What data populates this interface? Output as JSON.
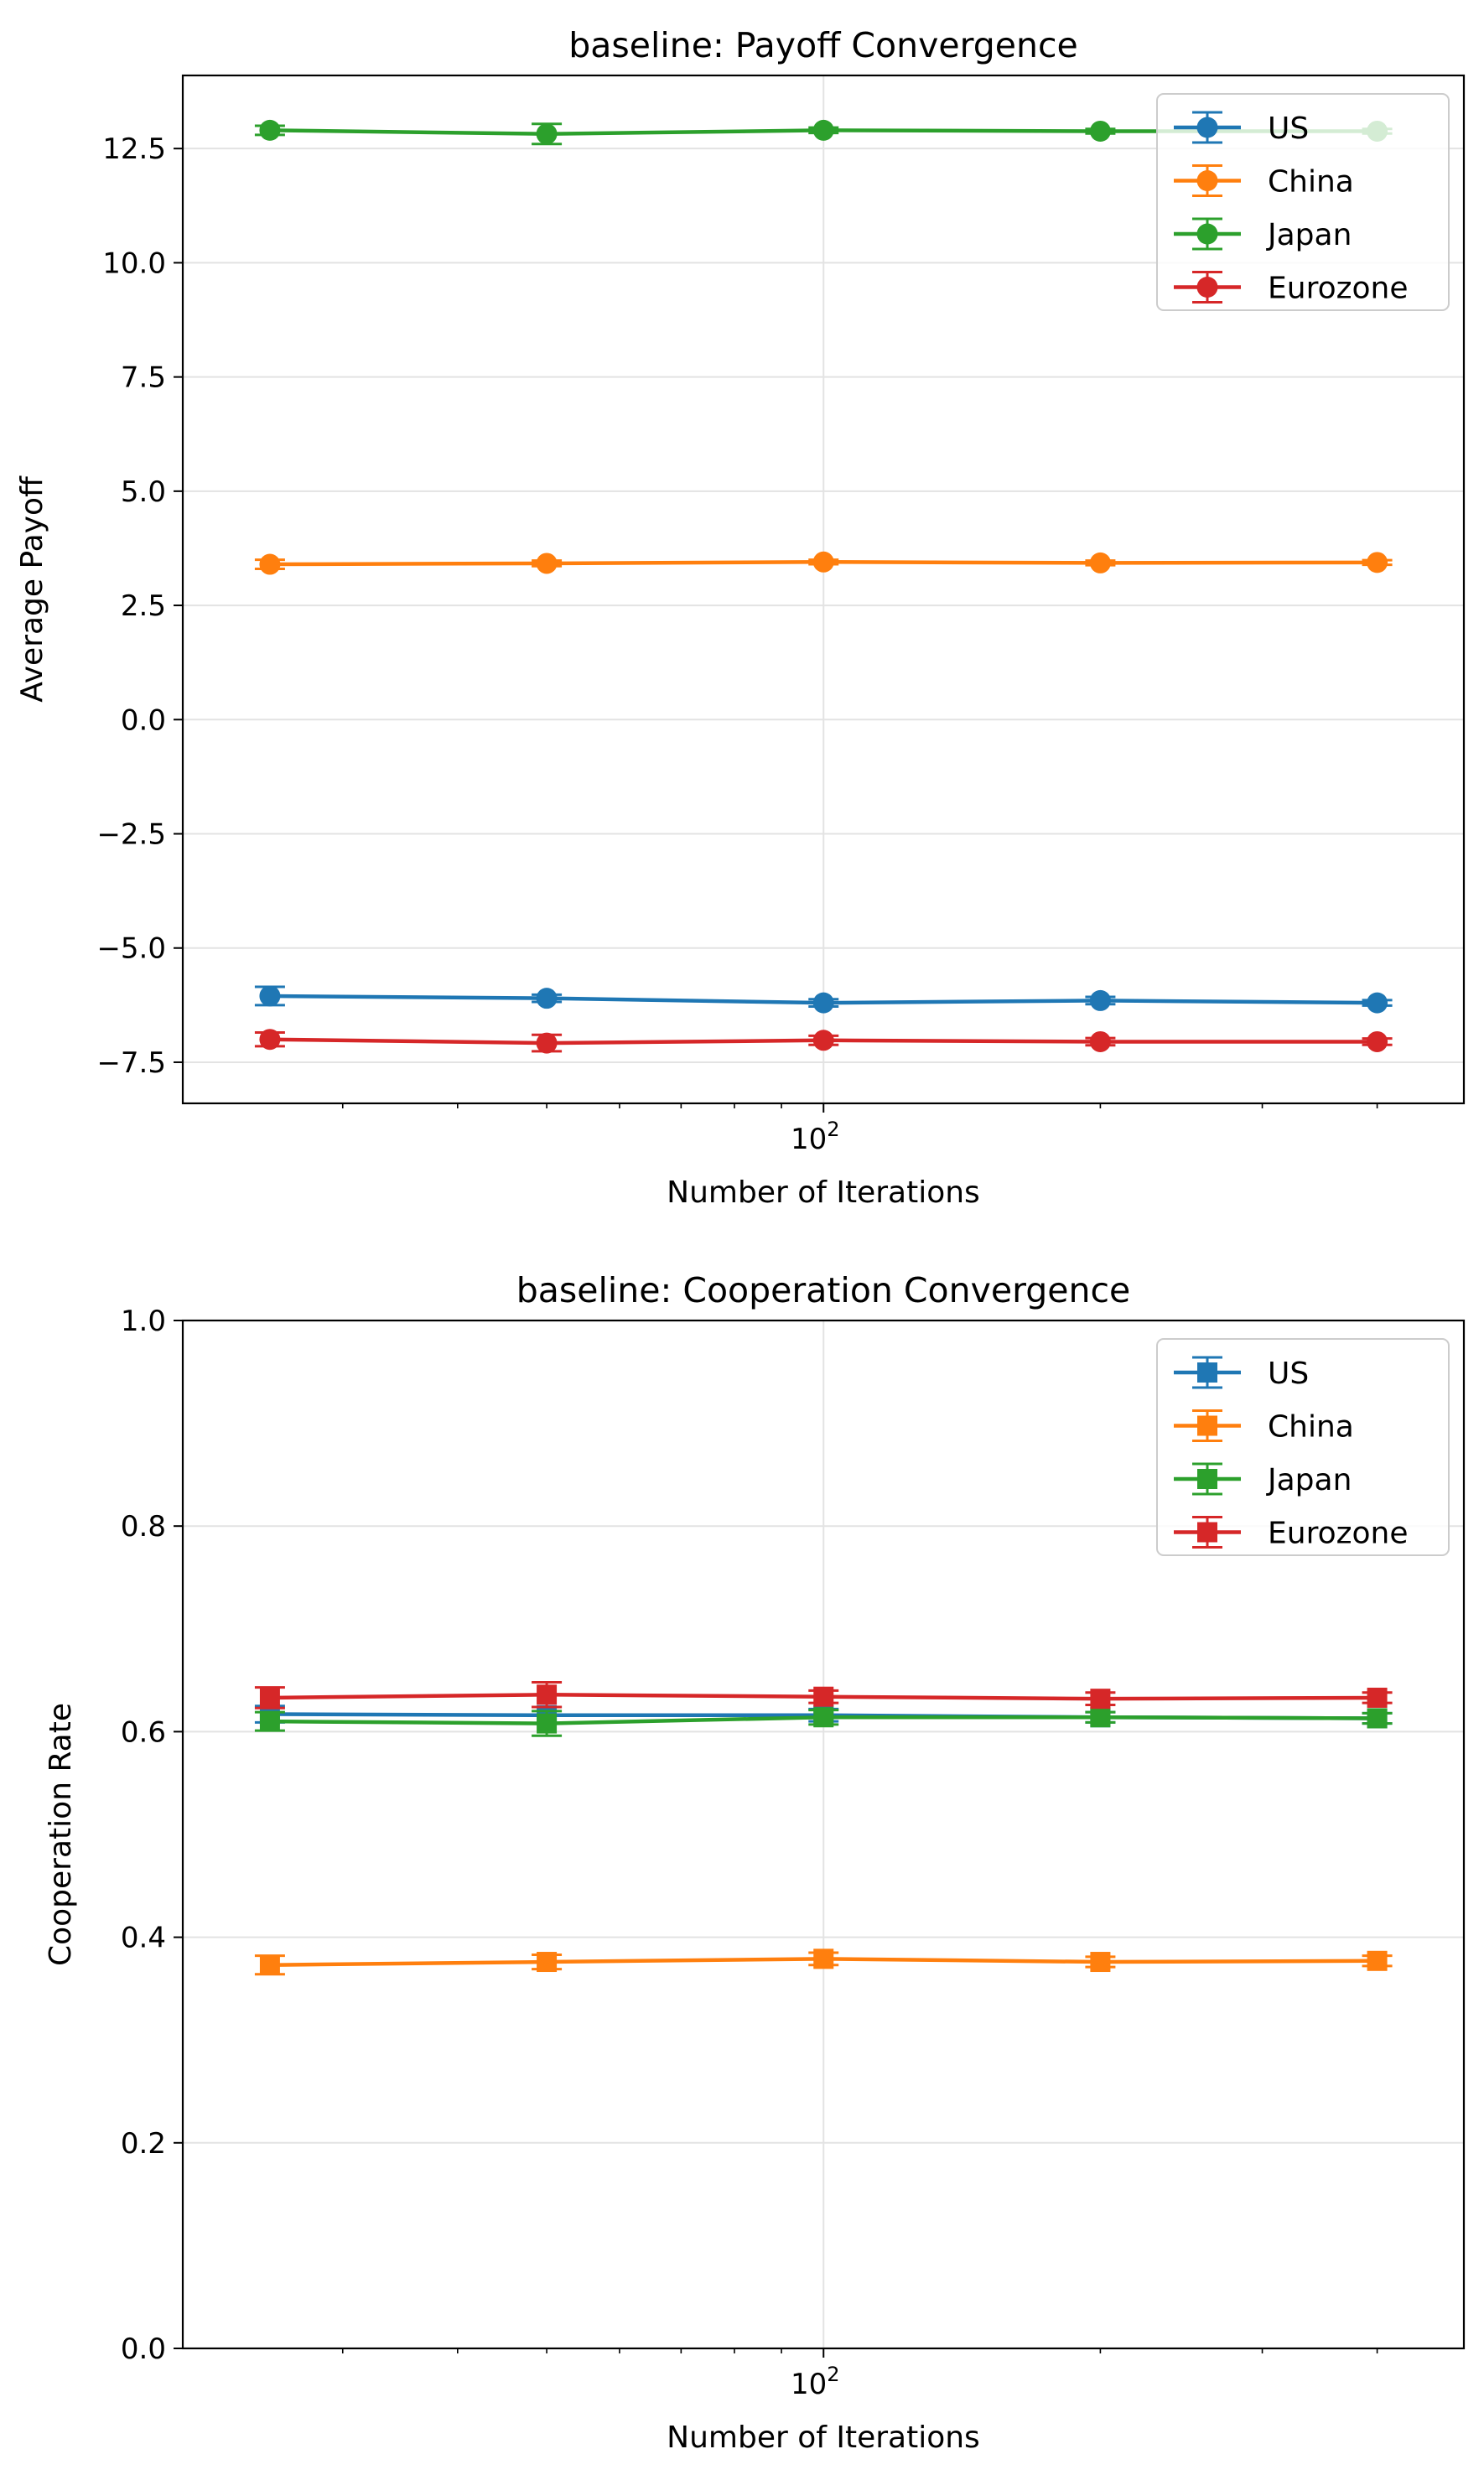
{
  "chart_data": [
    {
      "type": "line",
      "title": "baseline: Payoff Convergence",
      "xlabel": "Number of Iterations",
      "ylabel": "Average Payoff",
      "xscale": "log",
      "x": [
        25,
        50,
        100,
        200,
        400
      ],
      "xticks": [
        100
      ],
      "xtick_labels": [
        "10^2"
      ],
      "ylim": [
        -8.4,
        14.1
      ],
      "yticks": [
        -7.5,
        -5.0,
        -2.5,
        0.0,
        2.5,
        5.0,
        7.5,
        10.0,
        12.5
      ],
      "ytick_labels": [
        "−7.5",
        "−5.0",
        "−2.5",
        "0.0",
        "2.5",
        "5.0",
        "7.5",
        "10.0",
        "12.5"
      ],
      "grid": true,
      "legend_position": "top-right",
      "marker": "circle",
      "series": [
        {
          "name": "US",
          "color": "#1f77b4",
          "values": [
            -6.05,
            -6.1,
            -6.2,
            -6.15,
            -6.2
          ],
          "errors": [
            0.2,
            0.08,
            0.08,
            0.08,
            0.06
          ]
        },
        {
          "name": "China",
          "color": "#ff7f0e",
          "values": [
            3.4,
            3.42,
            3.45,
            3.43,
            3.44
          ],
          "errors": [
            0.1,
            0.06,
            0.05,
            0.05,
            0.05
          ]
        },
        {
          "name": "Japan",
          "color": "#2ca02c",
          "values": [
            12.9,
            12.82,
            12.9,
            12.88,
            12.88
          ],
          "errors": [
            0.1,
            0.22,
            0.06,
            0.05,
            0.05
          ]
        },
        {
          "name": "Eurozone",
          "color": "#d62728",
          "values": [
            -7.0,
            -7.08,
            -7.02,
            -7.05,
            -7.05
          ],
          "errors": [
            0.15,
            0.18,
            0.1,
            0.08,
            0.07
          ]
        }
      ]
    },
    {
      "type": "line",
      "title": "baseline: Cooperation Convergence",
      "xlabel": "Number of Iterations",
      "ylabel": "Cooperation Rate",
      "xscale": "log",
      "x": [
        25,
        50,
        100,
        200,
        400
      ],
      "xticks": [
        100
      ],
      "xtick_labels": [
        "10^2"
      ],
      "ylim": [
        0.0,
        1.0
      ],
      "yticks": [
        0.0,
        0.2,
        0.4,
        0.6,
        0.8,
        1.0
      ],
      "ytick_labels": [
        "0.0",
        "0.2",
        "0.4",
        "0.6",
        "0.8",
        "1.0"
      ],
      "grid": true,
      "legend_position": "top-right",
      "marker": "square",
      "series": [
        {
          "name": "US",
          "color": "#1f77b4",
          "values": [
            0.617,
            0.616,
            0.616,
            0.614,
            0.613
          ],
          "errors": [
            0.008,
            0.008,
            0.006,
            0.005,
            0.005
          ]
        },
        {
          "name": "China",
          "color": "#ff7f0e",
          "values": [
            0.373,
            0.376,
            0.379,
            0.376,
            0.377
          ],
          "errors": [
            0.009,
            0.007,
            0.006,
            0.005,
            0.005
          ]
        },
        {
          "name": "Japan",
          "color": "#2ca02c",
          "values": [
            0.61,
            0.608,
            0.614,
            0.614,
            0.613
          ],
          "errors": [
            0.009,
            0.012,
            0.007,
            0.005,
            0.005
          ]
        },
        {
          "name": "Eurozone",
          "color": "#d62728",
          "values": [
            0.633,
            0.636,
            0.634,
            0.632,
            0.633
          ],
          "errors": [
            0.01,
            0.012,
            0.006,
            0.006,
            0.005
          ]
        }
      ]
    }
  ]
}
